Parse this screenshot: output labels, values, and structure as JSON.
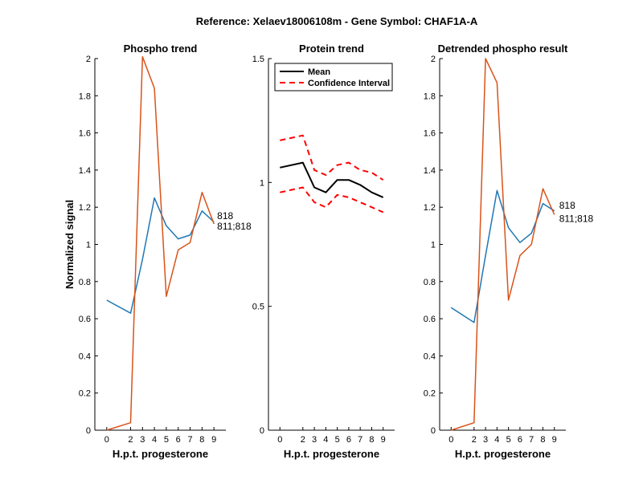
{
  "figure_title": "Reference:  Xelaev18006108m - Gene Symbol:  CHAF1A-A",
  "chart_data": [
    {
      "type": "line",
      "title": "Phospho trend",
      "xlabel": "H.p.t. progesterone",
      "ylabel": "Normalized signal",
      "x": [
        0,
        2,
        3,
        4,
        5,
        6,
        7,
        8,
        9
      ],
      "xticks": [
        "0",
        "2",
        "3",
        "4",
        "5",
        "6",
        "7",
        "8",
        "9"
      ],
      "ylim": [
        0,
        2
      ],
      "yticks": [
        0,
        0.2,
        0.4,
        0.6,
        0.8,
        1,
        1.2,
        1.4,
        1.6,
        1.8,
        2
      ],
      "ytick_labels": [
        "0",
        "0.2",
        "0.4",
        "0.6",
        "0.8",
        "1",
        "1.2",
        "1.4",
        "1.6",
        "1.8",
        "2"
      ],
      "series": [
        {
          "values": [
            0.7,
            0.63,
            0.92,
            1.25,
            1.1,
            1.03,
            1.05,
            1.18,
            1.12
          ],
          "color": "#1f77b4"
        },
        {
          "values": [
            0.0,
            0.04,
            2.01,
            1.84,
            0.72,
            0.97,
            1.01,
            1.28,
            1.11
          ],
          "color": "#d95319"
        }
      ],
      "annotations": [
        {
          "text": "818",
          "x": 9,
          "y": 1.124
        },
        {
          "text": "811;818",
          "x": 9,
          "y": 1.124
        }
      ]
    },
    {
      "type": "line",
      "title": "Protein trend",
      "xlabel": "H.p.t. progesterone",
      "ylabel": "",
      "x": [
        0,
        2,
        3,
        4,
        5,
        6,
        7,
        8,
        9
      ],
      "xticks": [
        "0",
        "2",
        "3",
        "4",
        "5",
        "6",
        "7",
        "8",
        "9"
      ],
      "ylim": [
        0,
        1.5
      ],
      "yticks": [
        0,
        0.5,
        1,
        1.5
      ],
      "ytick_labels": [
        "0",
        "0.5",
        "1",
        "1.5"
      ],
      "series": [
        {
          "name": "Mean",
          "values": [
            1.06,
            1.08,
            0.98,
            0.96,
            1.01,
            1.01,
            0.99,
            0.96,
            0.94
          ],
          "color": "#000000",
          "style": "solid"
        },
        {
          "name": "Confidence Interval",
          "values": [
            1.17,
            1.19,
            1.05,
            1.03,
            1.07,
            1.08,
            1.05,
            1.04,
            1.01
          ],
          "color": "#ff0000",
          "style": "dashed"
        },
        {
          "values": [
            0.96,
            0.98,
            0.92,
            0.9,
            0.95,
            0.94,
            0.92,
            0.9,
            0.88
          ],
          "color": "#ff0000",
          "style": "dashed"
        }
      ],
      "legend": {
        "position": "top-right",
        "entries": [
          "Mean",
          "Confidence Interval"
        ]
      }
    },
    {
      "type": "line",
      "title": "Detrended phospho result",
      "xlabel": "H.p.t. progesterone",
      "ylabel": "",
      "x": [
        0,
        2,
        3,
        4,
        5,
        6,
        7,
        8,
        9
      ],
      "xticks": [
        "0",
        "2",
        "3",
        "4",
        "5",
        "6",
        "7",
        "8",
        "9"
      ],
      "ylim": [
        0,
        2
      ],
      "yticks": [
        0,
        0.2,
        0.4,
        0.6,
        0.8,
        1,
        1.2,
        1.4,
        1.6,
        1.8,
        2
      ],
      "ytick_labels": [
        "0",
        "0.2",
        "0.4",
        "0.6",
        "0.8",
        "1",
        "1.2",
        "1.4",
        "1.6",
        "1.8",
        "2"
      ],
      "series": [
        {
          "values": [
            0.66,
            0.58,
            0.94,
            1.29,
            1.09,
            1.01,
            1.06,
            1.22,
            1.18
          ],
          "color": "#1f77b4"
        },
        {
          "values": [
            0.0,
            0.04,
            2.0,
            1.87,
            0.7,
            0.94,
            1.0,
            1.3,
            1.16
          ],
          "color": "#d95319"
        }
      ],
      "annotations": [
        {
          "text": "818",
          "x": 9,
          "y": 1.18
        },
        {
          "text": "811;818",
          "x": 9,
          "y": 1.16
        }
      ]
    }
  ]
}
